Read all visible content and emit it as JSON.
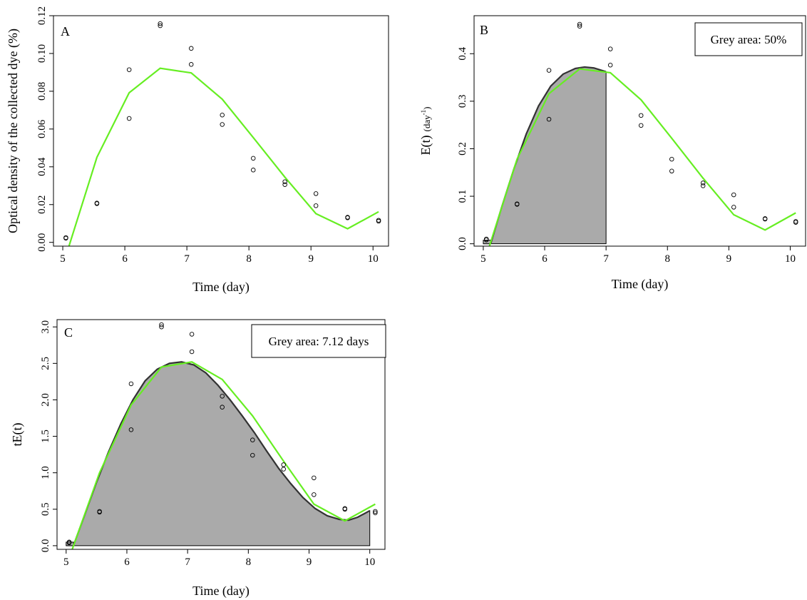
{
  "chart_data": [
    {
      "panel": "A",
      "type": "scatter",
      "xlabel": "Time (day)",
      "ylabel": "Optical density of the collected dye (%)",
      "xlim": [
        4.85,
        10.25
      ],
      "ylim": [
        -0.002,
        0.12
      ],
      "xticks": [
        "5",
        "6",
        "7",
        "8",
        "9",
        "10"
      ],
      "yticks": [
        "0.00",
        "0.02",
        "0.04",
        "0.06",
        "0.08",
        "0.10",
        "0.12"
      ],
      "points": {
        "x": [
          5.05,
          5.05,
          5.55,
          5.55,
          6.07,
          6.07,
          6.57,
          6.57,
          7.07,
          7.07,
          7.57,
          7.57,
          8.07,
          8.07,
          8.58,
          8.58,
          9.08,
          9.08,
          9.59,
          9.59,
          10.09,
          10.09
        ],
        "y": [
          0.0025,
          0.0022,
          0.0208,
          0.0205,
          0.0914,
          0.0656,
          0.1158,
          0.1147,
          0.1027,
          0.0942,
          0.0674,
          0.0624,
          0.0445,
          0.0383,
          0.0321,
          0.0306,
          0.0258,
          0.0194,
          0.0133,
          0.013,
          0.0117,
          0.0112
        ]
      },
      "fitted_line": {
        "color": "#66ee22",
        "x": [
          5.1,
          5.55,
          6.07,
          6.57,
          7.07,
          7.57,
          8.07,
          8.58,
          9.08,
          9.59,
          10.09
        ],
        "y": [
          -0.002,
          0.045,
          0.0792,
          0.0922,
          0.0897,
          0.0758,
          0.0555,
          0.0345,
          0.0152,
          0.0072,
          0.0162
        ]
      },
      "grey_area": null,
      "legend": ""
    },
    {
      "panel": "B",
      "type": "scatter",
      "xlabel": "Time (day)",
      "ylabel": "E(t) (day-1)",
      "ylabel_main": "E(t)",
      "ylabel_unit": "(day",
      "ylabel_sup": "-1",
      "ylabel_close": ")",
      "xlim": [
        4.85,
        10.25
      ],
      "ylim": [
        -0.005,
        0.48
      ],
      "xticks": [
        "5",
        "6",
        "7",
        "8",
        "9",
        "10"
      ],
      "yticks": [
        "0.0",
        "0.1",
        "0.2",
        "0.3",
        "0.4"
      ],
      "points": {
        "x": [
          5.05,
          5.05,
          5.55,
          5.55,
          6.07,
          6.07,
          6.57,
          6.57,
          7.07,
          7.07,
          7.57,
          7.57,
          8.07,
          8.07,
          8.58,
          8.58,
          9.08,
          9.08,
          9.59,
          9.59,
          10.09,
          10.09
        ],
        "y": [
          0.01,
          0.008,
          0.084,
          0.083,
          0.365,
          0.262,
          0.462,
          0.458,
          0.41,
          0.376,
          0.27,
          0.249,
          0.178,
          0.153,
          0.128,
          0.122,
          0.103,
          0.077,
          0.053,
          0.052,
          0.047,
          0.045
        ]
      },
      "fitted_line": {
        "color": "#66ee22",
        "x": [
          5.1,
          5.55,
          6.07,
          6.57,
          7.07,
          7.57,
          8.07,
          8.58,
          9.08,
          9.59,
          10.09
        ],
        "y": [
          -0.008,
          0.178,
          0.316,
          0.368,
          0.36,
          0.303,
          0.222,
          0.138,
          0.061,
          0.029,
          0.065
        ]
      },
      "grey_area": {
        "color": "#aaaaaa",
        "x_start": 5.0,
        "x_end": 7.0,
        "curve_x": [
          5.12,
          5.3,
          5.5,
          5.7,
          5.9,
          6.1,
          6.3,
          6.5,
          6.65,
          6.8,
          7.0
        ],
        "curve_y": [
          0.0,
          0.077,
          0.158,
          0.231,
          0.29,
          0.332,
          0.357,
          0.369,
          0.372,
          0.37,
          0.362
        ]
      },
      "legend": "Grey area: 50%"
    },
    {
      "panel": "C",
      "type": "scatter",
      "xlabel": "Time (day)",
      "ylabel": "tE(t)",
      "xlim": [
        4.85,
        10.25
      ],
      "ylim": [
        -0.05,
        3.1
      ],
      "xticks": [
        "5",
        "6",
        "7",
        "8",
        "9",
        "10"
      ],
      "yticks": [
        "0.0",
        "0.5",
        "1.0",
        "1.5",
        "2.0",
        "2.5",
        "3.0"
      ],
      "points": {
        "x": [
          5.05,
          5.05,
          5.55,
          5.55,
          6.07,
          6.07,
          6.57,
          6.57,
          7.07,
          7.07,
          7.57,
          7.57,
          8.07,
          8.07,
          8.58,
          8.58,
          9.08,
          9.08,
          9.59,
          9.59,
          10.09,
          10.09
        ],
        "y": [
          0.05,
          0.04,
          0.47,
          0.46,
          2.22,
          1.59,
          3.03,
          3.0,
          2.9,
          2.66,
          2.05,
          1.9,
          1.45,
          1.24,
          1.11,
          1.05,
          0.93,
          0.7,
          0.51,
          0.5,
          0.47,
          0.45
        ]
      },
      "fitted_line": {
        "color": "#66ee22",
        "x": [
          5.1,
          5.55,
          6.07,
          6.57,
          7.07,
          7.57,
          8.07,
          8.58,
          9.08,
          9.59,
          10.09
        ],
        "y": [
          -0.05,
          1.0,
          1.93,
          2.45,
          2.52,
          2.28,
          1.78,
          1.16,
          0.57,
          0.34,
          0.57
        ]
      },
      "grey_area": {
        "color": "#aaaaaa",
        "x_start": 5.0,
        "x_end": 10.0,
        "curve_x": [
          5.12,
          5.3,
          5.5,
          5.7,
          5.9,
          6.1,
          6.3,
          6.5,
          6.7,
          6.9,
          7.1,
          7.3,
          7.5,
          7.7,
          7.9,
          8.1,
          8.3,
          8.5,
          8.7,
          8.9,
          9.1,
          9.3,
          9.5,
          9.65,
          9.8,
          10.0
        ],
        "curve_y": [
          0.0,
          0.41,
          0.87,
          1.29,
          1.67,
          2.0,
          2.26,
          2.42,
          2.5,
          2.52,
          2.48,
          2.37,
          2.2,
          2.0,
          1.78,
          1.55,
          1.3,
          1.06,
          0.85,
          0.66,
          0.51,
          0.41,
          0.36,
          0.35,
          0.39,
          0.48
        ]
      },
      "legend": "Grey area: 7.12 days"
    }
  ]
}
